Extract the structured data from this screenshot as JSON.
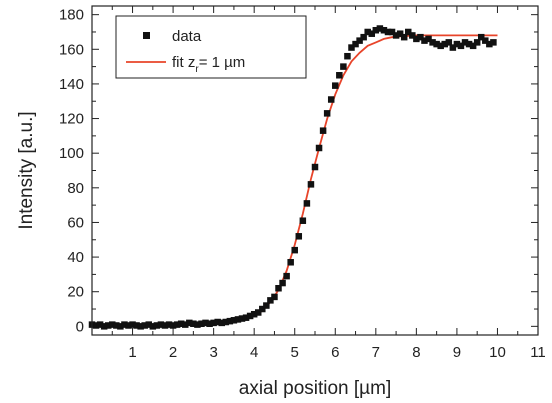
{
  "chart_data": {
    "type": "scatter",
    "xlabel": "axial position [µm]",
    "ylabel": "Intensity [a.u.]",
    "xlim": [
      0,
      11
    ],
    "ylim": [
      -5,
      185
    ],
    "xticks": [
      "1",
      "2",
      "3",
      "4",
      "5",
      "6",
      "7",
      "8",
      "9",
      "10",
      "11"
    ],
    "yticks": [
      "0",
      "20",
      "40",
      "60",
      "80",
      "100",
      "120",
      "140",
      "160",
      "180"
    ],
    "legend": {
      "position": "top-left",
      "data_label": "data",
      "fit_prefix": "fit  z",
      "fit_subscript": "r",
      "fit_suffix": "= 1 µm"
    },
    "colors": {
      "data": "#111111",
      "fit": "#e8442a",
      "axis": "#222222"
    },
    "series": [
      {
        "name": "data",
        "type": "scatter",
        "x": [
          0.0,
          0.1,
          0.2,
          0.3,
          0.4,
          0.5,
          0.6,
          0.7,
          0.8,
          0.9,
          1.0,
          1.1,
          1.2,
          1.3,
          1.4,
          1.5,
          1.6,
          1.7,
          1.8,
          1.9,
          2.0,
          2.1,
          2.2,
          2.3,
          2.4,
          2.5,
          2.6,
          2.7,
          2.8,
          2.9,
          3.0,
          3.1,
          3.2,
          3.3,
          3.4,
          3.5,
          3.6,
          3.7,
          3.8,
          3.9,
          4.0,
          4.1,
          4.2,
          4.3,
          4.4,
          4.5,
          4.6,
          4.7,
          4.8,
          4.9,
          5.0,
          5.1,
          5.2,
          5.3,
          5.4,
          5.5,
          5.6,
          5.7,
          5.8,
          5.9,
          6.0,
          6.1,
          6.2,
          6.3,
          6.4,
          6.5,
          6.6,
          6.7,
          6.8,
          6.9,
          7.0,
          7.1,
          7.2,
          7.3,
          7.4,
          7.5,
          7.6,
          7.7,
          7.8,
          7.9,
          8.0,
          8.1,
          8.2,
          8.3,
          8.4,
          8.5,
          8.6,
          8.7,
          8.8,
          8.9,
          9.0,
          9.1,
          9.2,
          9.3,
          9.4,
          9.5,
          9.6,
          9.7,
          9.8,
          9.9
        ],
        "y": [
          1,
          0.5,
          1,
          0,
          0.5,
          1,
          0.5,
          0,
          1,
          0.5,
          1,
          0.5,
          0,
          0.5,
          1,
          0,
          0.5,
          1,
          0.5,
          1,
          0.5,
          1,
          1.5,
          1,
          2,
          1.5,
          1,
          1.5,
          2,
          1.5,
          2,
          2.5,
          2,
          2.5,
          3,
          3.5,
          4,
          4.5,
          5,
          6,
          7,
          8,
          10,
          12,
          15,
          17,
          22,
          25,
          29,
          37,
          44,
          52,
          61,
          71,
          82,
          92,
          103,
          113,
          123,
          131,
          139,
          145,
          150,
          156,
          161,
          163,
          165,
          167,
          170,
          169,
          171,
          172,
          171,
          170,
          170,
          168,
          169,
          167,
          170,
          168,
          166,
          167,
          165,
          166,
          164,
          163,
          162,
          163,
          164,
          161,
          163,
          162,
          164,
          163,
          162,
          164,
          167,
          165,
          163,
          164
        ]
      },
      {
        "name": "fit  z_r= 1 µm",
        "type": "line",
        "x": [
          0.0,
          0.5,
          1.0,
          1.5,
          2.0,
          2.5,
          3.0,
          3.5,
          3.8,
          4.0,
          4.2,
          4.4,
          4.6,
          4.8,
          5.0,
          5.2,
          5.4,
          5.6,
          5.8,
          6.0,
          6.2,
          6.4,
          6.6,
          6.8,
          7.0,
          7.2,
          7.4,
          7.6,
          8.0,
          8.5,
          9.0,
          9.5,
          10.0
        ],
        "y": [
          0,
          0,
          0.2,
          0.3,
          0.5,
          0.8,
          1.3,
          2.5,
          4,
          6,
          9,
          14,
          21,
          32,
          47,
          65,
          85,
          103,
          120,
          134,
          145,
          153,
          158,
          162,
          164,
          166,
          167,
          167.5,
          168,
          168,
          168,
          168,
          168
        ]
      }
    ]
  }
}
